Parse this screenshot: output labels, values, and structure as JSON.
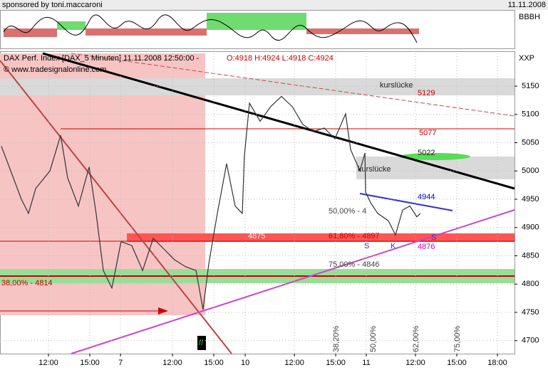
{
  "header": {
    "sponsor": "sponsored by toni.maccaroni",
    "date": "11.11.2008",
    "indicator_label": "BBBH"
  },
  "chart_data": {
    "type": "line",
    "title": "DAX Perf. Index [DAX_5 Minuten] 11.11.2008 12:50:00 -",
    "ohlc": "O:4918 H:4924 L:4918 C:4924",
    "credit": "© www.tradesignalonline.com",
    "scale_label": "XXP",
    "x": [
      8.58,
      9.26,
      10.03,
      10.55,
      11.07,
      12.1,
      12.88,
      13.39,
      14.17,
      14.95,
      15.46,
      15.98,
      16.6,
      17.27,
      18.05,
      18.83,
      19.6,
      20.38,
      21.15,
      21.93,
      22.71,
      23.22,
      23.64,
      24.26,
      24.93,
      25.55,
      26.07,
      26.22,
      26.59,
      27.36,
      28.14,
      28.91,
      29.69,
      30.47,
      31.24,
      32.02,
      32.79,
      33.57,
      33.93,
      34.61,
      34.97,
      35.02,
      35.38,
      35.9,
      36.67,
      37.19,
      37.71,
      38.23,
      38.74,
      39.0
    ],
    "series": [
      {
        "name": "DAX",
        "color": "#333333",
        "values": [
          5044,
          5000,
          4950,
          4925,
          4969,
          5000,
          5063,
          4988,
          4938,
          5007,
          4925,
          4824,
          4793,
          4875,
          4868,
          4824,
          4881,
          4862,
          4843,
          4831,
          4824,
          4755,
          4837,
          4925,
          5013,
          4938,
          4925,
          5026,
          5120,
          5088,
          5114,
          5132,
          5114,
          5082,
          5070,
          5076,
          5057,
          5101,
          5038,
          5000,
          5032,
          4963,
          4944,
          4925,
          4912,
          4887,
          4931,
          4938,
          4919,
          4925
        ]
      }
    ],
    "xlim": [
      8.48,
      45.83
    ],
    "ylim": [
      4677,
      5208
    ],
    "xticks": [
      {
        "value": 12,
        "label": "12:00"
      },
      {
        "value": 15,
        "label": "15:00"
      },
      {
        "value": 17.23,
        "label": "7"
      },
      {
        "value": 21,
        "label": "12:00"
      },
      {
        "value": 24,
        "label": "15:00"
      },
      {
        "value": 26.28,
        "label": "10"
      },
      {
        "value": 29.85,
        "label": "12:00"
      },
      {
        "value": 32.85,
        "label": "15:00"
      },
      {
        "value": 35.07,
        "label": "11"
      },
      {
        "value": 38.64,
        "label": "12:00"
      },
      {
        "value": 41.64,
        "label": "15:00"
      },
      {
        "value": 44.59,
        "label": "18:00"
      }
    ],
    "yticks": [
      4700,
      4750,
      4800,
      4850,
      4900,
      4950,
      5000,
      5050,
      5100,
      5150
    ],
    "grid": true,
    "annotations": [
      {
        "text": "kurslücke",
        "color": "#222222"
      },
      {
        "text": "5129",
        "color": "#cc0000"
      },
      {
        "text": "5077",
        "color": "#cc0000"
      },
      {
        "text": "5022",
        "color": "#222222"
      },
      {
        "text": "kurslücke",
        "color": "#222222"
      },
      {
        "text": "4944",
        "color": "#0000cc"
      },
      {
        "text": "50,00% - 4",
        "color": "#444444"
      },
      {
        "text": "4875",
        "color": "#ffffff"
      },
      {
        "text": "61,80% - 4897",
        "color": "#cc0000"
      },
      {
        "text": "4876",
        "color": "#cc00cc"
      },
      {
        "text": "S",
        "color": "#3333cc"
      },
      {
        "text": "K",
        "color": "#3333cc"
      },
      {
        "text": "S",
        "color": "#3333cc"
      },
      {
        "text": "75,00% - 4846",
        "color": "#444444"
      },
      {
        "text": "38,00% - 4814",
        "color": "#cc0000"
      },
      {
        "text": "38,20%",
        "color": "#444444"
      },
      {
        "text": "50,00%",
        "color": "#444444"
      },
      {
        "text": "62,00%",
        "color": "#444444"
      },
      {
        "text": "75,00%",
        "color": "#444444"
      },
      {
        "text": "//",
        "color": "#33cc33"
      }
    ]
  }
}
